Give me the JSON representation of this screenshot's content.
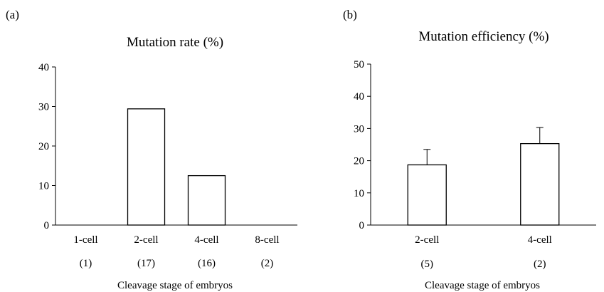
{
  "chart_data": [
    {
      "panel": "(a)",
      "type": "bar",
      "title": "Mutation rate (%)",
      "xlabel": "Cleavage stage of embryos",
      "ylabel": "",
      "ylim": [
        0,
        40
      ],
      "yticks": [
        0,
        10,
        20,
        30,
        40
      ],
      "categories": [
        "1-cell",
        "2-cell",
        "4-cell",
        "8-cell"
      ],
      "sample_sizes": [
        "(1)",
        "(17)",
        "(16)",
        "(2)"
      ],
      "values": [
        0,
        29.4,
        12.5,
        0
      ]
    },
    {
      "panel": "(b)",
      "type": "bar",
      "title": "Mutation efficiency (%)",
      "xlabel": "Cleavage stage of embryos",
      "ylabel": "",
      "ylim": [
        0,
        50
      ],
      "yticks": [
        0,
        10,
        20,
        30,
        40,
        50
      ],
      "categories": [
        "2-cell",
        "4-cell"
      ],
      "sample_sizes": [
        "(5)",
        "(2)"
      ],
      "values": [
        18.7,
        25.3
      ],
      "errors": [
        4.8,
        5.0
      ]
    }
  ]
}
